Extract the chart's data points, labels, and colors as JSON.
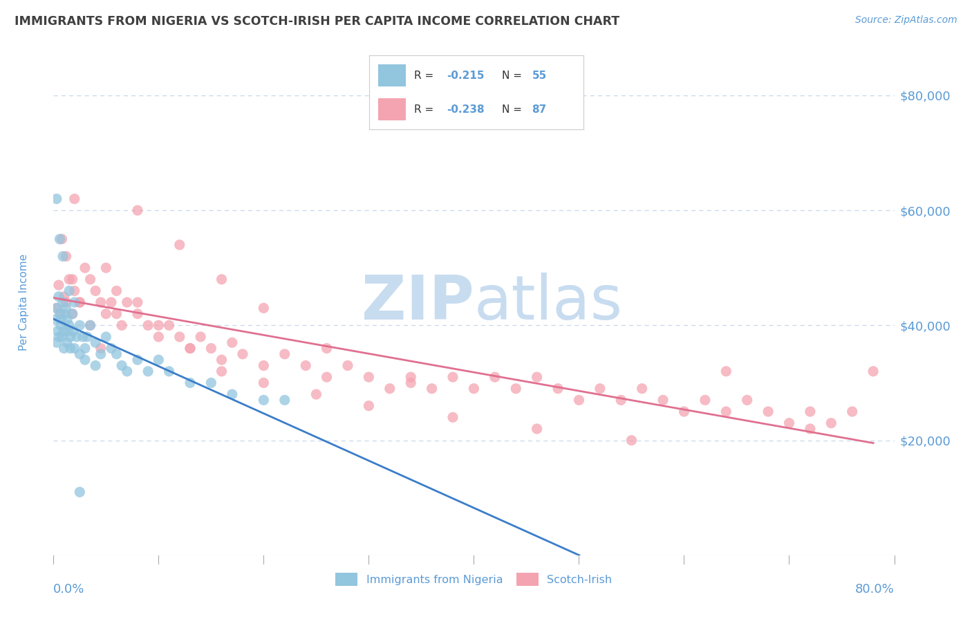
{
  "title": "IMMIGRANTS FROM NIGERIA VS SCOTCH-IRISH PER CAPITA INCOME CORRELATION CHART",
  "source": "Source: ZipAtlas.com",
  "ylabel": "Per Capita Income",
  "xmin": 0.0,
  "xmax": 0.8,
  "ymin": 0,
  "ymax": 88000,
  "color_nigeria": "#92C5DE",
  "color_scotch": "#F4A4B0",
  "color_nigeria_line": "#3A7DC9",
  "color_scotch_line": "#E07090",
  "color_axis": "#5B9BD5",
  "color_grid": "#C8D8E8",
  "color_title": "#404040",
  "bg_color": "#FFFFFF",
  "watermark_color": "#C8DCF0",
  "nigeria_x": [
    0.002,
    0.003,
    0.004,
    0.005,
    0.006,
    0.007,
    0.008,
    0.009,
    0.01,
    0.011,
    0.012,
    0.013,
    0.014,
    0.015,
    0.016,
    0.018,
    0.019,
    0.02,
    0.022,
    0.025,
    0.028,
    0.03,
    0.032,
    0.035,
    0.04,
    0.045,
    0.05,
    0.055,
    0.06,
    0.065,
    0.07,
    0.08,
    0.09,
    0.1,
    0.11,
    0.13,
    0.15,
    0.17,
    0.2,
    0.22,
    0.003,
    0.005,
    0.007,
    0.01,
    0.013,
    0.016,
    0.02,
    0.025,
    0.03,
    0.04,
    0.003,
    0.006,
    0.009,
    0.015,
    0.025
  ],
  "nigeria_y": [
    41000,
    43000,
    39000,
    45000,
    42000,
    40000,
    38000,
    44000,
    36000,
    42000,
    43000,
    41000,
    39000,
    40000,
    38000,
    42000,
    39000,
    44000,
    38000,
    40000,
    38000,
    36000,
    38000,
    40000,
    37000,
    35000,
    38000,
    36000,
    35000,
    33000,
    32000,
    34000,
    32000,
    34000,
    32000,
    30000,
    30000,
    28000,
    27000,
    27000,
    37000,
    38000,
    41000,
    39000,
    37000,
    36000,
    36000,
    35000,
    34000,
    33000,
    62000,
    55000,
    52000,
    46000,
    11000
  ],
  "scotch_x": [
    0.003,
    0.005,
    0.007,
    0.01,
    0.012,
    0.015,
    0.018,
    0.02,
    0.025,
    0.03,
    0.035,
    0.04,
    0.045,
    0.05,
    0.055,
    0.06,
    0.065,
    0.07,
    0.08,
    0.09,
    0.1,
    0.11,
    0.12,
    0.13,
    0.14,
    0.15,
    0.16,
    0.17,
    0.18,
    0.2,
    0.22,
    0.24,
    0.26,
    0.28,
    0.3,
    0.32,
    0.34,
    0.36,
    0.38,
    0.4,
    0.42,
    0.44,
    0.46,
    0.48,
    0.5,
    0.52,
    0.54,
    0.56,
    0.58,
    0.6,
    0.62,
    0.64,
    0.66,
    0.68,
    0.7,
    0.72,
    0.74,
    0.76,
    0.78,
    0.008,
    0.012,
    0.018,
    0.025,
    0.035,
    0.045,
    0.06,
    0.08,
    0.1,
    0.13,
    0.16,
    0.2,
    0.25,
    0.3,
    0.38,
    0.46,
    0.55,
    0.64,
    0.72,
    0.02,
    0.05,
    0.08,
    0.12,
    0.16,
    0.2,
    0.26,
    0.34
  ],
  "scotch_y": [
    43000,
    47000,
    42000,
    45000,
    44000,
    48000,
    42000,
    46000,
    44000,
    50000,
    48000,
    46000,
    44000,
    42000,
    44000,
    42000,
    40000,
    44000,
    42000,
    40000,
    38000,
    40000,
    38000,
    36000,
    38000,
    36000,
    34000,
    37000,
    35000,
    33000,
    35000,
    33000,
    31000,
    33000,
    31000,
    29000,
    31000,
    29000,
    31000,
    29000,
    31000,
    29000,
    31000,
    29000,
    27000,
    29000,
    27000,
    29000,
    27000,
    25000,
    27000,
    25000,
    27000,
    25000,
    23000,
    25000,
    23000,
    25000,
    32000,
    55000,
    52000,
    48000,
    44000,
    40000,
    36000,
    46000,
    44000,
    40000,
    36000,
    32000,
    30000,
    28000,
    26000,
    24000,
    22000,
    20000,
    32000,
    22000,
    62000,
    50000,
    60000,
    54000,
    48000,
    43000,
    36000,
    30000
  ],
  "ytick_vals": [
    20000,
    40000,
    60000,
    80000
  ],
  "ytick_labels": [
    "$20,000",
    "$40,000",
    "$60,000",
    "$80,000"
  ]
}
